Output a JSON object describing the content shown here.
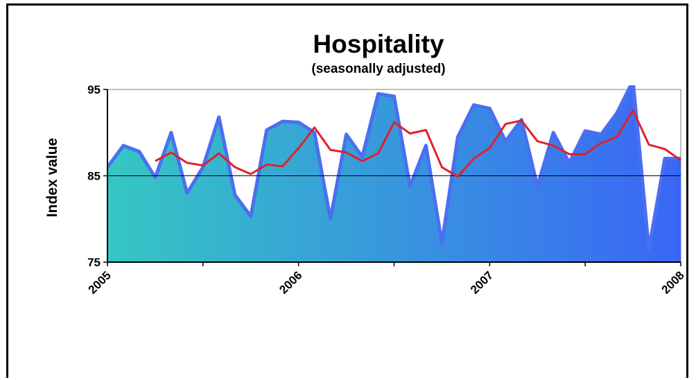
{
  "chart_data": {
    "type": "area",
    "title": "Hospitality",
    "subtitle": "(seasonally adjusted)",
    "ylabel": "Index value",
    "xlabel": "",
    "ylim": [
      75,
      95
    ],
    "xlim": [
      2005,
      2008
    ],
    "yticks": [
      75,
      85,
      95
    ],
    "xticks": [
      "2005",
      "2006",
      "2007",
      "2008"
    ],
    "reference_line": 85,
    "gradient_colors": [
      "#35c7c3",
      "#3a66f6"
    ],
    "series": [
      {
        "kind": "area",
        "color": "#4a6ff0",
        "x": [
          2005.0,
          2005.0833,
          2005.1667,
          2005.25,
          2005.3333,
          2005.4167,
          2005.5,
          2005.5833,
          2005.6667,
          2005.75,
          2005.8333,
          2005.9167,
          2006.0,
          2006.0833,
          2006.1667,
          2006.25,
          2006.3333,
          2006.4167,
          2006.5,
          2006.5833,
          2006.6667,
          2006.75,
          2006.8333,
          2006.9167,
          2007.0,
          2007.0833,
          2007.1667,
          2007.25,
          2007.3333,
          2007.4167,
          2007.5,
          2007.5833,
          2007.6667,
          2007.75,
          2007.8333,
          2007.9167,
          2008.0
        ],
        "values": [
          86.0,
          88.5,
          87.8,
          84.8,
          90.0,
          83.0,
          86.0,
          91.8,
          82.8,
          80.3,
          90.3,
          91.3,
          91.2,
          90.0,
          80.0,
          89.8,
          87.2,
          94.5,
          94.2,
          83.8,
          88.5,
          77.2,
          89.5,
          93.2,
          92.8,
          89.0,
          91.5,
          83.8,
          90.0,
          86.5,
          90.2,
          89.8,
          92.3,
          96.0,
          76.5,
          87.0,
          87.0
        ]
      },
      {
        "kind": "line",
        "color": "#e0202a",
        "x": [
          2005.25,
          2005.3333,
          2005.4167,
          2005.5,
          2005.5833,
          2005.6667,
          2005.75,
          2005.8333,
          2005.9167,
          2006.0,
          2006.0833,
          2006.1667,
          2006.25,
          2006.3333,
          2006.4167,
          2006.5,
          2006.5833,
          2006.6667,
          2006.75,
          2006.8333,
          2006.9167,
          2007.0,
          2007.0833,
          2007.1667,
          2007.25,
          2007.3333,
          2007.4167,
          2007.5,
          2007.5833,
          2007.6667,
          2007.75,
          2007.8333,
          2007.9167,
          2008.0
        ],
        "values": [
          86.7,
          87.7,
          86.5,
          86.2,
          87.6,
          86.0,
          85.2,
          86.3,
          86.1,
          88.2,
          90.6,
          88.0,
          87.7,
          86.7,
          87.6,
          91.2,
          89.9,
          90.3,
          86.0,
          84.9,
          87.0,
          88.2,
          91.0,
          91.4,
          89.0,
          88.5,
          87.5,
          87.5,
          88.8,
          89.5,
          92.6,
          88.6,
          88.1,
          86.8
        ]
      }
    ],
    "grid": false,
    "legend": "none"
  }
}
